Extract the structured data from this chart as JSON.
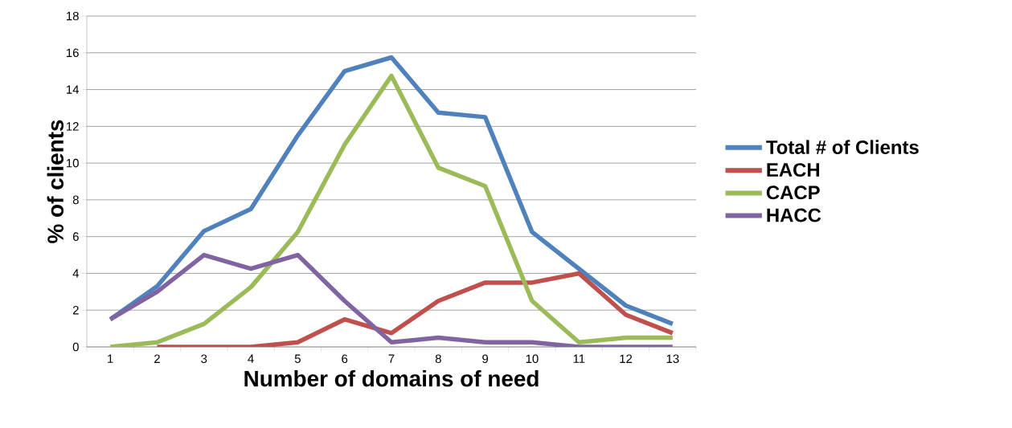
{
  "chart_data": {
    "type": "line",
    "xlabel": "Number of domains of need",
    "ylabel": "% of clients",
    "categories": [
      "1",
      "2",
      "3",
      "4",
      "5",
      "6",
      "7",
      "8",
      "9",
      "10",
      "11",
      "12",
      "13"
    ],
    "series": [
      {
        "name": "Total # of Clients",
        "color": "#4f81bd",
        "values": [
          1.5,
          3.3,
          6.3,
          7.5,
          11.5,
          15.0,
          15.75,
          12.75,
          12.5,
          6.25,
          4.25,
          2.25,
          1.25
        ]
      },
      {
        "name": "EACH",
        "color": "#c0504d",
        "values": [
          null,
          0,
          0,
          0,
          0.25,
          1.5,
          0.75,
          2.5,
          3.5,
          3.5,
          4.0,
          1.75,
          0.75
        ]
      },
      {
        "name": "CACP",
        "color": "#9bbb59",
        "values": [
          0,
          0.25,
          1.25,
          3.25,
          6.25,
          11.0,
          14.75,
          9.75,
          8.75,
          2.5,
          0.25,
          0.5,
          0.5
        ]
      },
      {
        "name": "HACC",
        "color": "#8064a2",
        "values": [
          1.5,
          3.0,
          5.0,
          4.25,
          5.0,
          2.5,
          0.25,
          0.5,
          0.25,
          0.25,
          0,
          0,
          0
        ]
      }
    ],
    "ylim": [
      0,
      18
    ],
    "yticks": [
      0,
      2,
      4,
      6,
      8,
      10,
      12,
      14,
      16,
      18
    ],
    "grid": "y",
    "legend": "right",
    "marker": "none",
    "line_style": "solid"
  }
}
